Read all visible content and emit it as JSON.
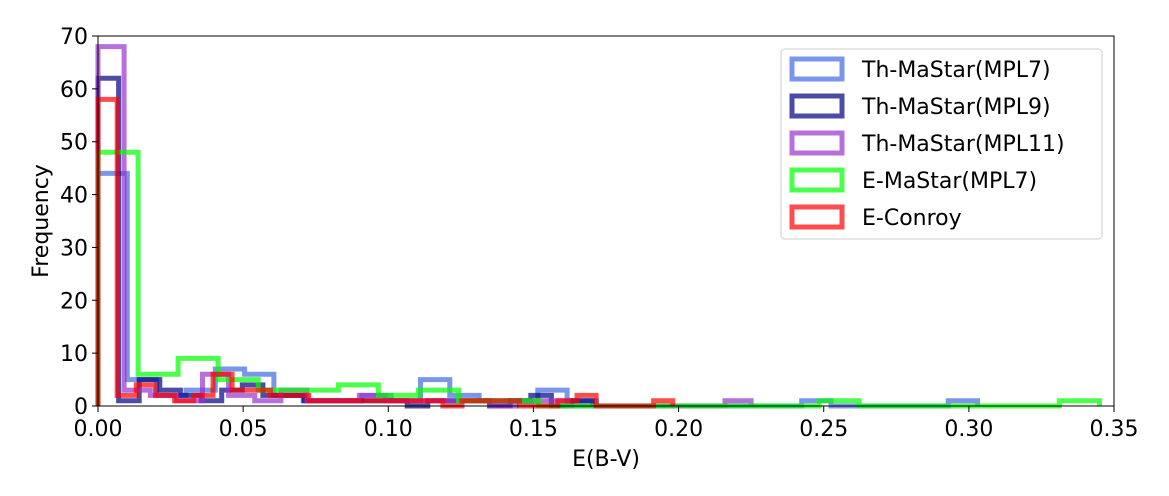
{
  "chart_data": {
    "type": "histogram",
    "xlabel": "E(B-V)",
    "ylabel": "Frequency",
    "xlim": [
      0.0,
      0.35
    ],
    "ylim": [
      0,
      70
    ],
    "xticks": [
      "0.00",
      "0.05",
      "0.10",
      "0.15",
      "0.20",
      "0.25",
      "0.30",
      "0.35"
    ],
    "yticks": [
      "0",
      "10",
      "20",
      "30",
      "40",
      "50",
      "60",
      "70"
    ],
    "grid": false,
    "legend_position": "top-right",
    "series": [
      {
        "name": "Th-MaStar(MPL7)",
        "color": "#4169e1",
        "edges": [
          0.0,
          0.0101,
          0.0202,
          0.0303,
          0.0404,
          0.0505,
          0.0606,
          0.0707,
          0.0808,
          0.0909,
          0.101,
          0.1111,
          0.1212,
          0.1313,
          0.1414,
          0.1515,
          0.1616,
          0.1717,
          0.1818,
          0.1919,
          0.202,
          0.2121,
          0.2222,
          0.2323,
          0.2424,
          0.2525,
          0.2626,
          0.2727,
          0.2828,
          0.2929,
          0.303
        ],
        "counts": [
          44,
          5,
          2,
          3,
          7,
          6,
          2,
          1,
          1,
          2,
          1,
          5,
          2,
          1,
          1,
          3,
          1,
          0,
          0,
          0,
          0,
          0,
          0,
          0,
          1,
          0,
          0,
          0,
          0,
          1
        ]
      },
      {
        "name": "Th-MaStar(MPL9)",
        "color": "#000080",
        "edges": [
          0.0,
          0.0071,
          0.0142,
          0.0213,
          0.0284,
          0.0355,
          0.0426,
          0.0497,
          0.0568,
          0.0639,
          0.071,
          0.0781,
          0.0852,
          0.0923,
          0.0994,
          0.1065,
          0.1136,
          0.1207,
          0.1278,
          0.1349,
          0.142,
          0.1491,
          0.1562,
          0.1633,
          0.1704
        ],
        "counts": [
          62,
          1,
          5,
          3,
          2,
          1,
          3,
          4,
          2,
          2,
          1,
          1,
          1,
          1,
          1,
          0,
          1,
          1,
          1,
          0,
          1,
          2,
          0,
          1
        ]
      },
      {
        "name": "Th-MaStar(MPL11)",
        "color": "#9932cc",
        "edges": [
          0.0,
          0.009,
          0.018,
          0.027,
          0.036,
          0.045,
          0.054,
          0.063,
          0.072,
          0.081,
          0.09,
          0.099,
          0.108,
          0.117,
          0.126,
          0.135,
          0.144,
          0.153,
          0.162,
          0.171,
          0.18,
          0.189,
          0.198,
          0.207,
          0.216,
          0.225
        ],
        "counts": [
          68,
          3,
          2,
          1,
          6,
          2,
          1,
          3,
          1,
          1,
          2,
          1,
          1,
          1,
          1,
          0,
          1,
          1,
          0,
          0,
          0,
          0,
          0,
          0,
          1
        ]
      },
      {
        "name": "E-MaStar(MPL7)",
        "color": "#00ff00",
        "edges": [
          0.0,
          0.0138,
          0.0276,
          0.0414,
          0.0552,
          0.069,
          0.0828,
          0.0966,
          0.1104,
          0.1242,
          0.138,
          0.1518,
          0.1656,
          0.1794,
          0.1932,
          0.207,
          0.2208,
          0.2346,
          0.2484,
          0.2622,
          0.276,
          0.2898,
          0.3036,
          0.3174,
          0.3312,
          0.345
        ],
        "counts": [
          48,
          6,
          9,
          5,
          3,
          3,
          4,
          2,
          3,
          1,
          1,
          0,
          0,
          0,
          0,
          0,
          0,
          0,
          1,
          0,
          0,
          0,
          0,
          0,
          1
        ]
      },
      {
        "name": "E-Conroy",
        "color": "#ff0000",
        "edges": [
          0.0,
          0.0066,
          0.0132,
          0.0198,
          0.0264,
          0.033,
          0.0396,
          0.0462,
          0.0528,
          0.0594,
          0.066,
          0.0726,
          0.0792,
          0.0858,
          0.0924,
          0.099,
          0.1056,
          0.1122,
          0.1188,
          0.1254,
          0.132,
          0.1386,
          0.1452,
          0.1518,
          0.1584,
          0.165,
          0.1716,
          0.1782,
          0.1848,
          0.1914,
          0.198
        ],
        "counts": [
          58,
          2,
          4,
          2,
          1,
          2,
          6,
          3,
          3,
          2,
          2,
          1,
          1,
          1,
          1,
          1,
          1,
          1,
          0,
          1,
          1,
          1,
          0,
          0,
          1,
          2,
          0,
          0,
          0,
          1
        ]
      }
    ]
  }
}
